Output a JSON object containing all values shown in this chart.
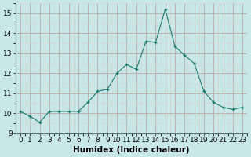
{
  "x": [
    0,
    1,
    2,
    3,
    4,
    5,
    6,
    7,
    8,
    9,
    10,
    11,
    12,
    13,
    14,
    15,
    16,
    17,
    18,
    19,
    20,
    21,
    22,
    23
  ],
  "y": [
    10.1,
    9.85,
    9.55,
    10.1,
    10.1,
    10.1,
    10.1,
    10.55,
    11.1,
    11.2,
    12.0,
    12.45,
    12.2,
    13.6,
    13.55,
    15.2,
    13.35,
    12.9,
    12.5,
    11.1,
    10.55,
    10.3,
    10.2,
    10.3
  ],
  "line_color": "#1a7a6a",
  "marker": "+",
  "marker_color": "#1a7a6a",
  "bg_color": "#c8e8e8",
  "grid_major_color": "#c0a8a8",
  "grid_minor_color": "#ddd0d0",
  "xlabel": "Humidex (Indice chaleur)",
  "ylim": [
    9,
    15.5
  ],
  "xlim": [
    -0.5,
    23.5
  ],
  "yticks": [
    9,
    10,
    11,
    12,
    13,
    14,
    15
  ],
  "xticks": [
    0,
    1,
    2,
    3,
    4,
    5,
    6,
    7,
    8,
    9,
    10,
    11,
    12,
    13,
    14,
    15,
    16,
    17,
    18,
    19,
    20,
    21,
    22,
    23
  ],
  "tick_fontsize": 6.5,
  "xlabel_fontsize": 7.5
}
